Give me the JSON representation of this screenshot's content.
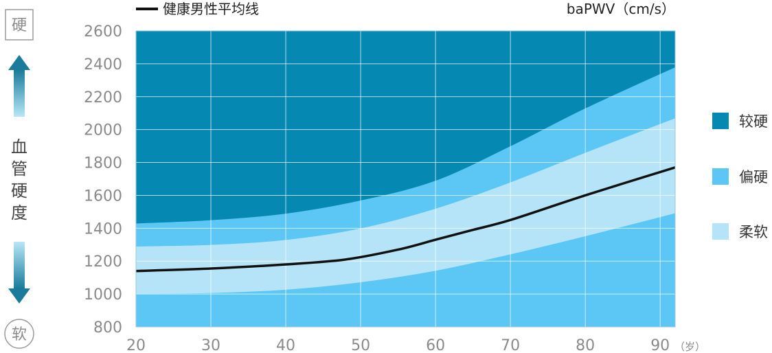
{
  "chart_data": {
    "type": "area",
    "ylabel": "baPWV（cm/s）",
    "x_unit": "（岁）",
    "xlim": [
      20,
      92
    ],
    "ylim": [
      800,
      2600
    ],
    "x_ticks": [
      20,
      30,
      40,
      50,
      60,
      70,
      80,
      90
    ],
    "y_ticks": [
      800,
      1000,
      1200,
      1400,
      1600,
      1800,
      2000,
      2200,
      2400,
      2600
    ],
    "grid": true,
    "x": [
      20,
      30,
      40,
      50,
      60,
      70,
      80,
      92
    ],
    "bands": [
      {
        "name": "柔软",
        "color": "#b5e4f8",
        "lower": [
          1000,
          1005,
          1025,
          1070,
          1140,
          1240,
          1350,
          1490
        ],
        "upper": [
          1290,
          1300,
          1330,
          1400,
          1520,
          1680,
          1860,
          2070
        ]
      },
      {
        "name": "偏硬",
        "color": "#5cc7f4",
        "lower": [
          800,
          800,
          800,
          800,
          800,
          800,
          800,
          800
        ],
        "upper": [
          1000,
          1005,
          1025,
          1070,
          1140,
          1240,
          1350,
          1490
        ]
      },
      {
        "name": "偏硬",
        "color": "#5cc7f4",
        "lower": [
          1290,
          1300,
          1330,
          1400,
          1520,
          1680,
          1860,
          2070
        ],
        "upper": [
          1430,
          1450,
          1490,
          1570,
          1690,
          1900,
          2130,
          2380
        ]
      },
      {
        "name": "较硬",
        "color": "#0589b3",
        "lower": [
          1430,
          1450,
          1490,
          1570,
          1690,
          1900,
          2130,
          2380
        ],
        "upper": [
          2600,
          2600,
          2600,
          2600,
          2600,
          2600,
          2600,
          2600
        ]
      }
    ],
    "series": [
      {
        "name": "健康男性平均线",
        "color": "#111111",
        "x": [
          20,
          30,
          40,
          48,
          55,
          60,
          65,
          70,
          80,
          92
        ],
        "values": [
          1140,
          1155,
          1180,
          1210,
          1270,
          1330,
          1390,
          1450,
          1600,
          1770
        ]
      }
    ],
    "legend": [
      {
        "label": "较硬",
        "color": "#0589b3"
      },
      {
        "label": "偏硬",
        "color": "#5cc7f4"
      },
      {
        "label": "柔软",
        "color": "#b5e4f8"
      }
    ]
  },
  "side": {
    "hard_badge": "硬",
    "soft_badge": "软",
    "title": "血管硬度"
  }
}
